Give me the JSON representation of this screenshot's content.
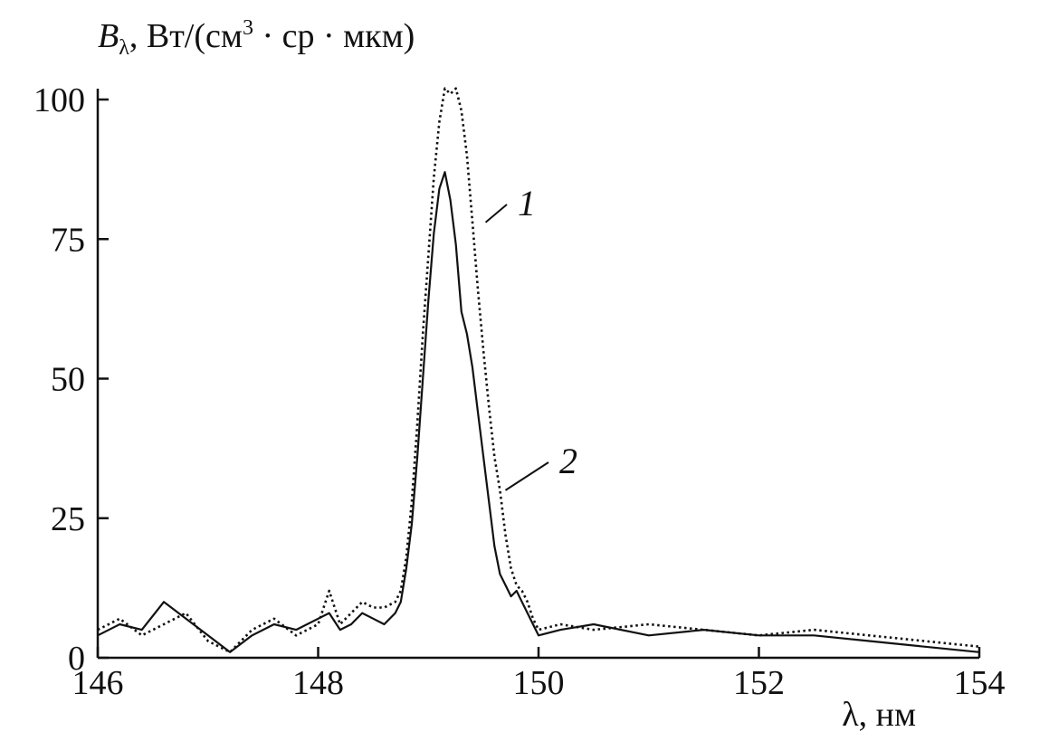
{
  "chart_data": {
    "type": "line",
    "ylabel": {
      "symbol": "B",
      "subscript": "λ",
      "units_pre": ", Вт/(см",
      "units_sup": "3",
      "units_post": " · ср · мкм)"
    },
    "xlabel": "λ, нм",
    "xlim": [
      146,
      154
    ],
    "ylim": [
      0,
      100
    ],
    "xticks": [
      146,
      148,
      150,
      152,
      154
    ],
    "yticks": [
      0,
      25,
      50,
      75,
      100
    ],
    "xtick_labels": [
      "146",
      "148",
      "150",
      "152",
      "154"
    ],
    "ytick_labels": [
      "0",
      "25",
      "50",
      "75",
      "100"
    ],
    "grid": false,
    "series": [
      {
        "name": "1",
        "style": "dotted",
        "color": "#111111",
        "x": [
          146.0,
          146.2,
          146.4,
          146.6,
          146.8,
          147.0,
          147.2,
          147.4,
          147.6,
          147.8,
          148.0,
          148.1,
          148.2,
          148.3,
          148.4,
          148.5,
          148.6,
          148.7,
          148.75,
          148.8,
          148.85,
          148.9,
          148.95,
          149.0,
          149.05,
          149.1,
          149.15,
          149.2,
          149.25,
          149.3,
          149.35,
          149.4,
          149.45,
          149.5,
          149.55,
          149.6,
          149.65,
          149.7,
          149.75,
          149.8,
          149.85,
          149.9,
          149.95,
          150.0,
          150.2,
          150.5,
          151.0,
          151.5,
          152.0,
          152.5,
          153.0,
          153.5,
          154.0
        ],
        "y": [
          5,
          7,
          4,
          6,
          8,
          3,
          1,
          5,
          7,
          4,
          6,
          12,
          6,
          8,
          10,
          9,
          9,
          10,
          12,
          18,
          28,
          42,
          58,
          72,
          86,
          96,
          102,
          101,
          102,
          98,
          90,
          78,
          66,
          55,
          45,
          36,
          30,
          22,
          16,
          13,
          12,
          10,
          7,
          5,
          6,
          5,
          6,
          5,
          4,
          5,
          4,
          3,
          2
        ]
      },
      {
        "name": "2",
        "style": "solid",
        "color": "#111111",
        "x": [
          146.0,
          146.2,
          146.4,
          146.6,
          146.8,
          147.0,
          147.2,
          147.4,
          147.6,
          147.8,
          148.0,
          148.1,
          148.2,
          148.3,
          148.4,
          148.5,
          148.6,
          148.7,
          148.75,
          148.8,
          148.85,
          148.9,
          148.95,
          149.0,
          149.05,
          149.1,
          149.15,
          149.2,
          149.25,
          149.3,
          149.35,
          149.4,
          149.45,
          149.5,
          149.55,
          149.6,
          149.65,
          149.7,
          149.75,
          149.8,
          149.85,
          149.9,
          149.95,
          150.0,
          150.2,
          150.5,
          151.0,
          151.5,
          152.0,
          152.5,
          153.0,
          153.5,
          154.0
        ],
        "y": [
          4,
          6,
          5,
          10,
          7,
          4,
          1,
          4,
          6,
          5,
          7,
          8,
          5,
          6,
          8,
          7,
          6,
          8,
          10,
          16,
          24,
          36,
          50,
          64,
          76,
          84,
          87,
          82,
          74,
          62,
          58,
          52,
          44,
          36,
          28,
          20,
          15,
          13,
          11,
          12,
          10,
          8,
          6,
          4,
          5,
          6,
          4,
          5,
          4,
          4,
          3,
          2,
          1
        ]
      }
    ],
    "annotations": [
      {
        "text": "1",
        "series": "1"
      },
      {
        "text": "2",
        "series": "2"
      }
    ]
  }
}
